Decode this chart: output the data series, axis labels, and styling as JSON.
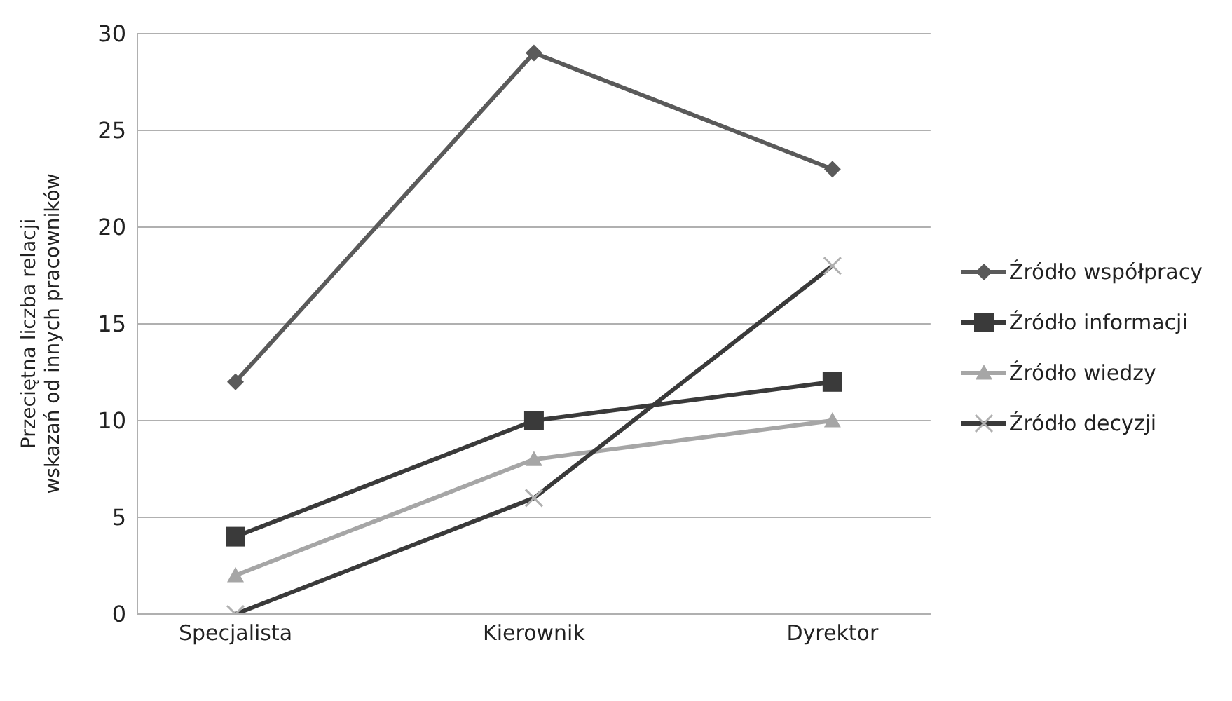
{
  "chart_data": {
    "type": "line",
    "ylabel": "Przeciętna liczba relacji\nwskazań od innych pracowników",
    "categories": [
      "Specjalista",
      "Kierownik",
      "Dyrektor"
    ],
    "series": [
      {
        "name": "Źródło współpracy",
        "color": "#5a5a5a",
        "marker": "diamond",
        "values": [
          12,
          29,
          23
        ]
      },
      {
        "name": "Źródło informacji",
        "color": "#3a3a3a",
        "marker": "square",
        "values": [
          4,
          10,
          12
        ]
      },
      {
        "name": "Źródło wiedzy",
        "color": "#a6a6a6",
        "marker": "triangle",
        "values": [
          2,
          8,
          10
        ]
      },
      {
        "name": "Źródło decyzji",
        "color": "#3a3a3a",
        "marker": "cross",
        "values": [
          0,
          6,
          18
        ]
      }
    ],
    "ylim": [
      0,
      30
    ],
    "yticks": [
      0,
      5,
      10,
      15,
      20,
      25,
      30
    ],
    "grid": "y",
    "legend": "right",
    "line_style": "solid"
  }
}
